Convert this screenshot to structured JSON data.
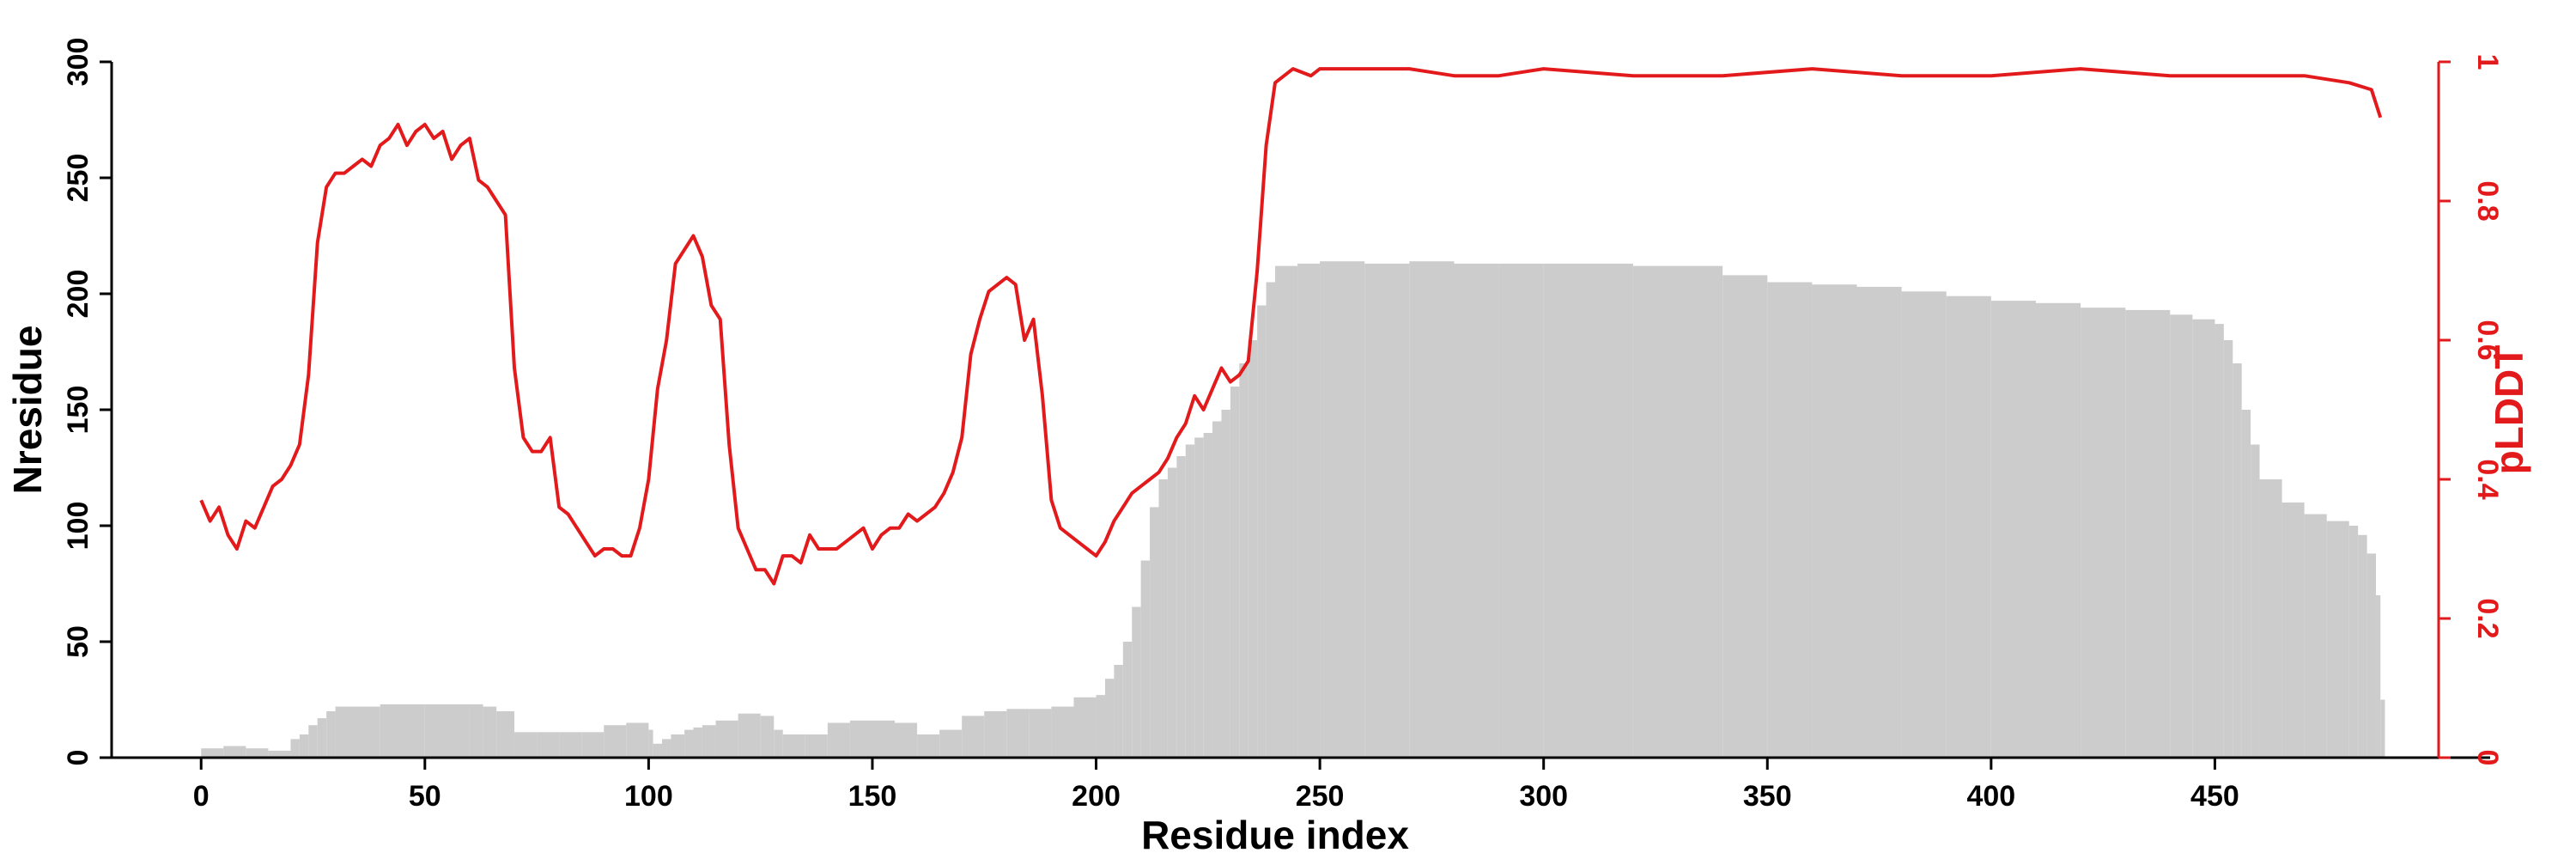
{
  "chart_data": {
    "type": "bar+line",
    "title": "",
    "xlabel": "Residue index",
    "ylabel_left": "Nresidue",
    "ylabel_right": "pLDDT",
    "xlim": [
      -20,
      500
    ],
    "ylim_left": [
      0,
      300
    ],
    "ylim_right": [
      0,
      1
    ],
    "xticks": [
      0,
      50,
      100,
      150,
      200,
      250,
      300,
      350,
      400,
      450
    ],
    "yticks_left": [
      0,
      50,
      100,
      150,
      200,
      250,
      300
    ],
    "yticks_right": [
      0,
      0.2,
      0.4,
      0.6,
      0.8,
      1
    ],
    "ytick_labels_right": [
      "0",
      "0.2",
      "0.4",
      "0.6",
      "0.8",
      "1"
    ],
    "grid": false,
    "series": [
      {
        "name": "Nresidue",
        "type": "bar",
        "color": "#cccccc",
        "axis": "left",
        "x": [
          0,
          5,
          10,
          15,
          20,
          22,
          24,
          26,
          28,
          30,
          40,
          50,
          60,
          63,
          66,
          70,
          75,
          80,
          85,
          90,
          95,
          100,
          101,
          103,
          105,
          108,
          110,
          112,
          115,
          120,
          125,
          128,
          130,
          135,
          140,
          145,
          150,
          155,
          160,
          165,
          170,
          175,
          180,
          185,
          190,
          195,
          200,
          202,
          204,
          206,
          208,
          210,
          212,
          214,
          216,
          218,
          220,
          222,
          224,
          226,
          228,
          230,
          232,
          234,
          236,
          238,
          240,
          245,
          250,
          260,
          270,
          280,
          290,
          300,
          320,
          340,
          350,
          360,
          370,
          380,
          390,
          400,
          410,
          420,
          430,
          440,
          445,
          450,
          452,
          454,
          456,
          458,
          460,
          465,
          470,
          475,
          480,
          482,
          484,
          486,
          487
        ],
        "values": [
          4,
          5,
          4,
          3,
          8,
          10,
          14,
          17,
          20,
          22,
          23,
          23,
          23,
          22,
          20,
          11,
          11,
          11,
          11,
          14,
          15,
          12,
          6,
          8,
          10,
          12,
          13,
          14,
          16,
          19,
          18,
          12,
          10,
          10,
          15,
          16,
          16,
          15,
          10,
          12,
          18,
          20,
          21,
          21,
          22,
          26,
          27,
          34,
          40,
          50,
          65,
          85,
          108,
          120,
          125,
          130,
          135,
          138,
          140,
          145,
          150,
          160,
          170,
          180,
          195,
          205,
          212,
          213,
          214,
          213,
          214,
          213,
          213,
          213,
          212,
          208,
          205,
          204,
          203,
          201,
          199,
          197,
          196,
          194,
          193,
          191,
          189,
          187,
          180,
          170,
          150,
          135,
          120,
          110,
          105,
          102,
          100,
          96,
          88,
          70,
          25
        ]
      },
      {
        "name": "pLDDT",
        "type": "line",
        "color": "#e31a1c",
        "axis": "right",
        "x": [
          0,
          2,
          4,
          6,
          8,
          10,
          12,
          14,
          16,
          18,
          20,
          22,
          24,
          26,
          28,
          30,
          32,
          34,
          36,
          38,
          40,
          42,
          44,
          46,
          48,
          50,
          52,
          54,
          56,
          58,
          60,
          62,
          64,
          66,
          68,
          70,
          72,
          74,
          76,
          78,
          80,
          82,
          84,
          86,
          88,
          90,
          92,
          94,
          96,
          98,
          100,
          102,
          104,
          106,
          108,
          110,
          112,
          114,
          116,
          118,
          120,
          122,
          124,
          126,
          128,
          130,
          132,
          134,
          136,
          138,
          140,
          142,
          144,
          146,
          148,
          150,
          152,
          154,
          156,
          158,
          160,
          162,
          164,
          166,
          168,
          170,
          172,
          174,
          176,
          178,
          180,
          182,
          184,
          186,
          188,
          190,
          192,
          194,
          196,
          198,
          200,
          202,
          204,
          206,
          208,
          210,
          212,
          214,
          216,
          218,
          220,
          222,
          224,
          226,
          228,
          230,
          232,
          234,
          236,
          238,
          240,
          244,
          248,
          250,
          260,
          270,
          280,
          290,
          300,
          320,
          340,
          360,
          380,
          400,
          420,
          440,
          460,
          470,
          480,
          485,
          487
        ],
        "values": [
          0.37,
          0.34,
          0.36,
          0.32,
          0.3,
          0.34,
          0.33,
          0.36,
          0.39,
          0.4,
          0.42,
          0.45,
          0.55,
          0.74,
          0.82,
          0.84,
          0.84,
          0.85,
          0.86,
          0.85,
          0.88,
          0.89,
          0.91,
          0.88,
          0.9,
          0.91,
          0.89,
          0.9,
          0.86,
          0.88,
          0.89,
          0.83,
          0.82,
          0.8,
          0.78,
          0.56,
          0.46,
          0.44,
          0.44,
          0.46,
          0.36,
          0.35,
          0.33,
          0.31,
          0.29,
          0.3,
          0.3,
          0.29,
          0.29,
          0.33,
          0.4,
          0.53,
          0.6,
          0.71,
          0.73,
          0.75,
          0.72,
          0.65,
          0.63,
          0.45,
          0.33,
          0.3,
          0.27,
          0.27,
          0.25,
          0.29,
          0.29,
          0.28,
          0.32,
          0.3,
          0.3,
          0.3,
          0.31,
          0.32,
          0.33,
          0.3,
          0.32,
          0.33,
          0.33,
          0.35,
          0.34,
          0.35,
          0.36,
          0.38,
          0.41,
          0.46,
          0.58,
          0.63,
          0.67,
          0.68,
          0.69,
          0.68,
          0.6,
          0.63,
          0.52,
          0.37,
          0.33,
          0.32,
          0.31,
          0.3,
          0.29,
          0.31,
          0.34,
          0.36,
          0.38,
          0.39,
          0.4,
          0.41,
          0.43,
          0.46,
          0.48,
          0.52,
          0.5,
          0.53,
          0.56,
          0.54,
          0.55,
          0.57,
          0.7,
          0.88,
          0.97,
          0.99,
          0.98,
          0.99,
          0.99,
          0.99,
          0.98,
          0.98,
          0.99,
          0.98,
          0.98,
          0.99,
          0.98,
          0.98,
          0.99,
          0.98,
          0.98,
          0.98,
          0.97,
          0.96,
          0.92
        ]
      }
    ]
  }
}
